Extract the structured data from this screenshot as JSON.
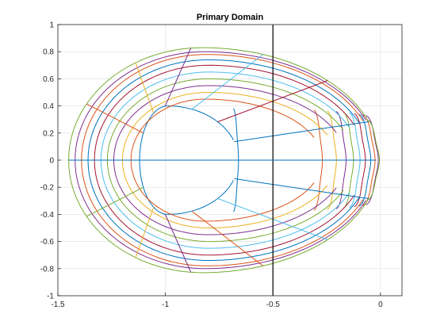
{
  "chart_data": {
    "type": "line",
    "title": "Primary Domain",
    "xlabel": "",
    "ylabel": "",
    "xlim": [
      -1.5,
      0.1
    ],
    "ylim": [
      -1,
      1
    ],
    "x_ticks": [
      -1.5,
      -1,
      -0.5,
      0
    ],
    "x_tick_labels": [
      "-1.5",
      "-1",
      "-0.5",
      "0"
    ],
    "y_ticks": [
      -1,
      -0.8,
      -0.6,
      -0.4,
      -0.2,
      0,
      0.2,
      0.4,
      0.6,
      0.8,
      1
    ],
    "y_tick_labels": [
      "-1",
      "-0.8",
      "-0.6",
      "-0.4",
      "-0.2",
      "0",
      "0.2",
      "0.4",
      "0.6",
      "0.8",
      "1"
    ],
    "grid": true,
    "palette": [
      "#0072BD",
      "#D95319",
      "#EDB120",
      "#7E2F8E",
      "#77AC30",
      "#4DBEEE",
      "#A2142F"
    ],
    "reference_lines": [
      {
        "orientation": "vertical",
        "x": -0.5,
        "color": "#000000"
      },
      {
        "orientation": "horizontal",
        "y": 0,
        "x_range": [
          -1.12,
          -0.02
        ],
        "color": "#0072BD"
      }
    ],
    "outer_boundaries": [
      {
        "index": 0,
        "left_x": -1.12,
        "right_x": -0.66,
        "top": 0.4,
        "tip_y": 0.38,
        "color": "#0072BD"
      },
      {
        "index": 1,
        "left_x": -1.16,
        "right_x": -0.27,
        "top": 0.45,
        "tip_y": 0.37,
        "color": "#D95319"
      },
      {
        "index": 2,
        "left_x": -1.2,
        "right_x": -0.205,
        "top": 0.5,
        "tip_y": 0.365,
        "color": "#EDB120"
      },
      {
        "index": 3,
        "left_x": -1.24,
        "right_x": -0.16,
        "top": 0.55,
        "tip_y": 0.36,
        "color": "#7E2F8E"
      },
      {
        "index": 4,
        "left_x": -1.27,
        "right_x": -0.125,
        "top": 0.6,
        "tip_y": 0.355,
        "color": "#77AC30"
      },
      {
        "index": 5,
        "left_x": -1.3,
        "right_x": -0.095,
        "top": 0.65,
        "tip_y": 0.35,
        "color": "#4DBEEE"
      },
      {
        "index": 6,
        "left_x": -1.33,
        "right_x": -0.07,
        "top": 0.7,
        "tip_y": 0.345,
        "color": "#A2142F"
      },
      {
        "index": 7,
        "left_x": -1.36,
        "right_x": -0.045,
        "top": 0.74,
        "tip_y": 0.34,
        "color": "#0072BD"
      },
      {
        "index": 8,
        "left_x": -1.39,
        "right_x": -0.025,
        "top": 0.78,
        "tip_y": 0.335,
        "color": "#D95319"
      },
      {
        "index": 9,
        "left_x": -1.42,
        "right_x": -0.01,
        "top": 0.8,
        "tip_y": 0.33,
        "color": "#7E2F8E"
      },
      {
        "index": 10,
        "left_x": -1.45,
        "right_x": -0.005,
        "top": 0.83,
        "tip_y": 0.3,
        "color": "#77AC30"
      }
    ],
    "radial_lines": [
      {
        "angle_deg": 20,
        "color": "#0072BD"
      },
      {
        "angle_deg": 45,
        "color": "#A2142F"
      },
      {
        "angle_deg": 70,
        "color": "#4DBEEE"
      },
      {
        "angle_deg": 95,
        "color": "#7E2F8E"
      },
      {
        "angle_deg": 120,
        "color": "#EDB120"
      },
      {
        "angle_deg": 150,
        "color": "#D95319"
      },
      {
        "angle_deg": 180,
        "color": "#0072BD"
      },
      {
        "angle_deg": 210,
        "color": "#77AC30"
      },
      {
        "angle_deg": 240,
        "color": "#EDB120"
      },
      {
        "angle_deg": 265,
        "color": "#7E2F8E"
      },
      {
        "angle_deg": 290,
        "color": "#D95319"
      },
      {
        "angle_deg": 315,
        "color": "#4DBEEE"
      },
      {
        "angle_deg": 340,
        "color": "#0072BD"
      }
    ]
  }
}
